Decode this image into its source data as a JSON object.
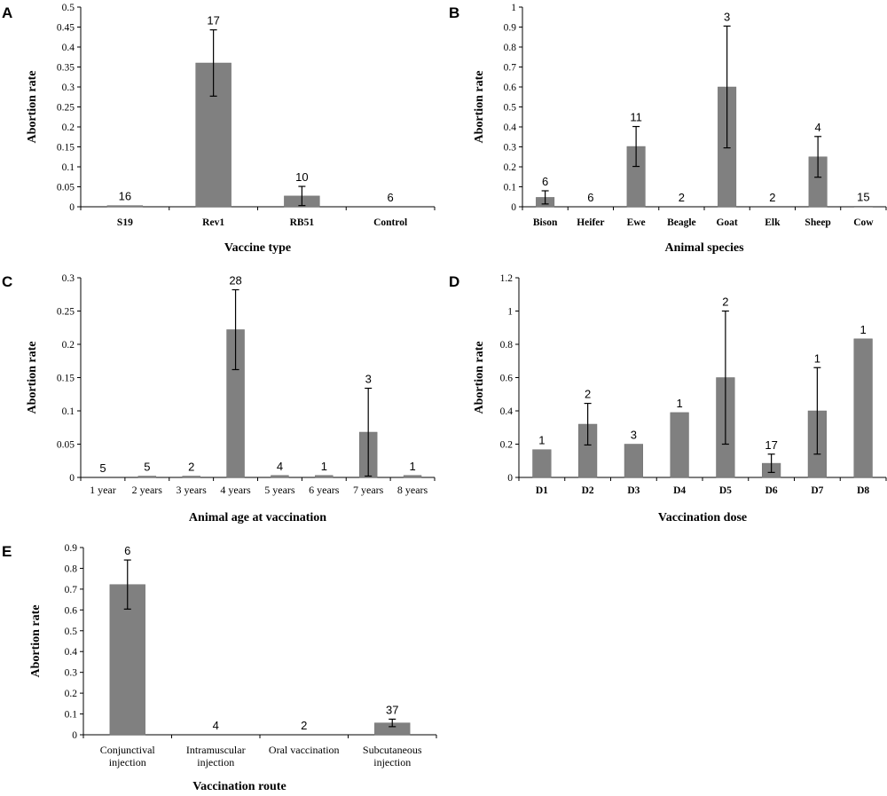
{
  "chart_data": [
    {
      "id": "A",
      "type": "bar",
      "panel_label": "A",
      "title": "",
      "xlabel": "Vaccine type",
      "ylabel": "Abortion rate",
      "ylim": [
        0,
        0.5
      ],
      "yticks": [
        "0",
        "0.05",
        "0.1",
        "0.15",
        "0.2",
        "0.25",
        "0.3",
        "0.35",
        "0.4",
        "0.45",
        "0.5"
      ],
      "categories": [
        "S19",
        "Rev1",
        "RB51",
        "Control"
      ],
      "values": [
        0.003,
        0.36,
        0.027,
        0
      ],
      "errors": [
        0,
        0.083,
        0.024,
        0
      ],
      "n_labels": [
        "16",
        "17",
        "10",
        "6"
      ],
      "bar_color": "#808080"
    },
    {
      "id": "B",
      "type": "bar",
      "panel_label": "B",
      "title": "",
      "xlabel": "Animal species",
      "ylabel": "Abortion rate",
      "ylim": [
        0,
        1
      ],
      "yticks": [
        "0",
        "0.1",
        "0.2",
        "0.3",
        "0.4",
        "0.5",
        "0.6",
        "0.7",
        "0.8",
        "0.9",
        "1"
      ],
      "categories": [
        "Bison",
        "Heifer",
        "Ewe",
        "Beagle",
        "Goat",
        "Elk",
        "Sheep",
        "Cow"
      ],
      "values": [
        0.047,
        0,
        0.302,
        0,
        0.6,
        0,
        0.25,
        0.003
      ],
      "errors": [
        0.033,
        0,
        0.1,
        0,
        0.305,
        0,
        0.102,
        0
      ],
      "n_labels": [
        "6",
        "6",
        "11",
        "2",
        "3",
        "2",
        "4",
        "15"
      ],
      "bar_color": "#808080"
    },
    {
      "id": "C",
      "type": "bar",
      "panel_label": "C",
      "title": "",
      "xlabel": "Animal age at vaccination",
      "ylabel": "Abortion rate",
      "ylim": [
        0,
        0.3
      ],
      "yticks": [
        "0",
        "0.05",
        "0.1",
        "0.15",
        "0.2",
        "0.25",
        "0.3"
      ],
      "categories": [
        "1 year",
        "2 years",
        "3 years",
        "4 years",
        "5 years",
        "6 years",
        "7 years",
        "8 years"
      ],
      "values": [
        0,
        0.002,
        0.002,
        0.222,
        0.003,
        0.003,
        0.068,
        0.003
      ],
      "errors": [
        0,
        0,
        0,
        0.06,
        0,
        0,
        0.066,
        0
      ],
      "n_labels": [
        "5",
        "5",
        "2",
        "28",
        "4",
        "1",
        "3",
        "1"
      ],
      "bar_color": "#808080"
    },
    {
      "id": "D",
      "type": "bar",
      "panel_label": "D",
      "title": "",
      "xlabel": "Vaccination dose",
      "ylabel": "Abortion rate",
      "ylim": [
        0,
        1.2
      ],
      "yticks": [
        "0",
        "0.2",
        "0.4",
        "0.6",
        "0.8",
        "1",
        "1.2"
      ],
      "categories": [
        "D1",
        "D2",
        "D3",
        "D4",
        "D5",
        "D6",
        "D7",
        "D8"
      ],
      "values": [
        0.167,
        0.32,
        0.2,
        0.39,
        0.6,
        0.085,
        0.4,
        0.833
      ],
      "errors": [
        0,
        0.125,
        0,
        0,
        0.4,
        0.055,
        0.26,
        0
      ],
      "n_labels": [
        "1",
        "2",
        "3",
        "1",
        "2",
        "17",
        "1",
        "1"
      ],
      "bar_color": "#808080"
    },
    {
      "id": "E",
      "type": "bar",
      "panel_label": "E",
      "title": "",
      "xlabel": "Vaccination route",
      "ylabel": "Abortion rate",
      "ylim": [
        0,
        0.9
      ],
      "yticks": [
        "0",
        "0.1",
        "0.2",
        "0.3",
        "0.4",
        "0.5",
        "0.6",
        "0.7",
        "0.8",
        "0.9"
      ],
      "categories": [
        [
          "Conjunctival",
          "injection"
        ],
        [
          "Intramuscular",
          "injection"
        ],
        [
          "Oral vaccination"
        ],
        [
          "Subcutaneous",
          "injection"
        ]
      ],
      "values": [
        0.722,
        0,
        0,
        0.057
      ],
      "errors": [
        0.118,
        0,
        0,
        0.018
      ],
      "n_labels": [
        "6",
        "4",
        "2",
        "37"
      ],
      "bar_color": "#808080"
    }
  ]
}
